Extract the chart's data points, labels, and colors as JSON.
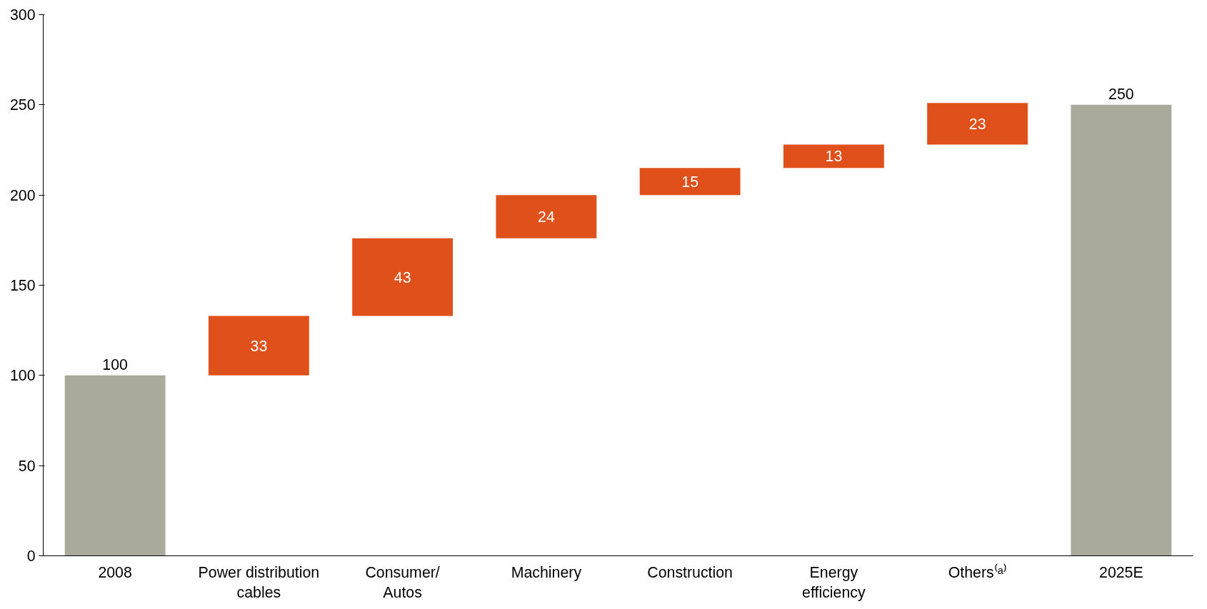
{
  "chart_data": {
    "type": "bar",
    "categories": [
      "2008",
      "Power distribution cables",
      "Consumer/ Autos",
      "Machinery",
      "Construction",
      "Energy efficiency",
      "Others⁽ᵃ⁾",
      "2025E"
    ],
    "values": [
      100,
      33,
      43,
      24,
      15,
      13,
      23,
      250
    ],
    "base": [
      0,
      100,
      133,
      176,
      200,
      215,
      228,
      0
    ],
    "colors": [
      "#a9aa9c",
      "#e0501a",
      "#e0501a",
      "#e0501a",
      "#e0501a",
      "#e0501a",
      "#e0501a",
      "#a9aa9c"
    ],
    "data_labels": true,
    "ylim": [
      0,
      300
    ],
    "yticks": [
      0,
      50,
      100,
      150,
      200,
      250,
      300
    ],
    "grid": false
  }
}
